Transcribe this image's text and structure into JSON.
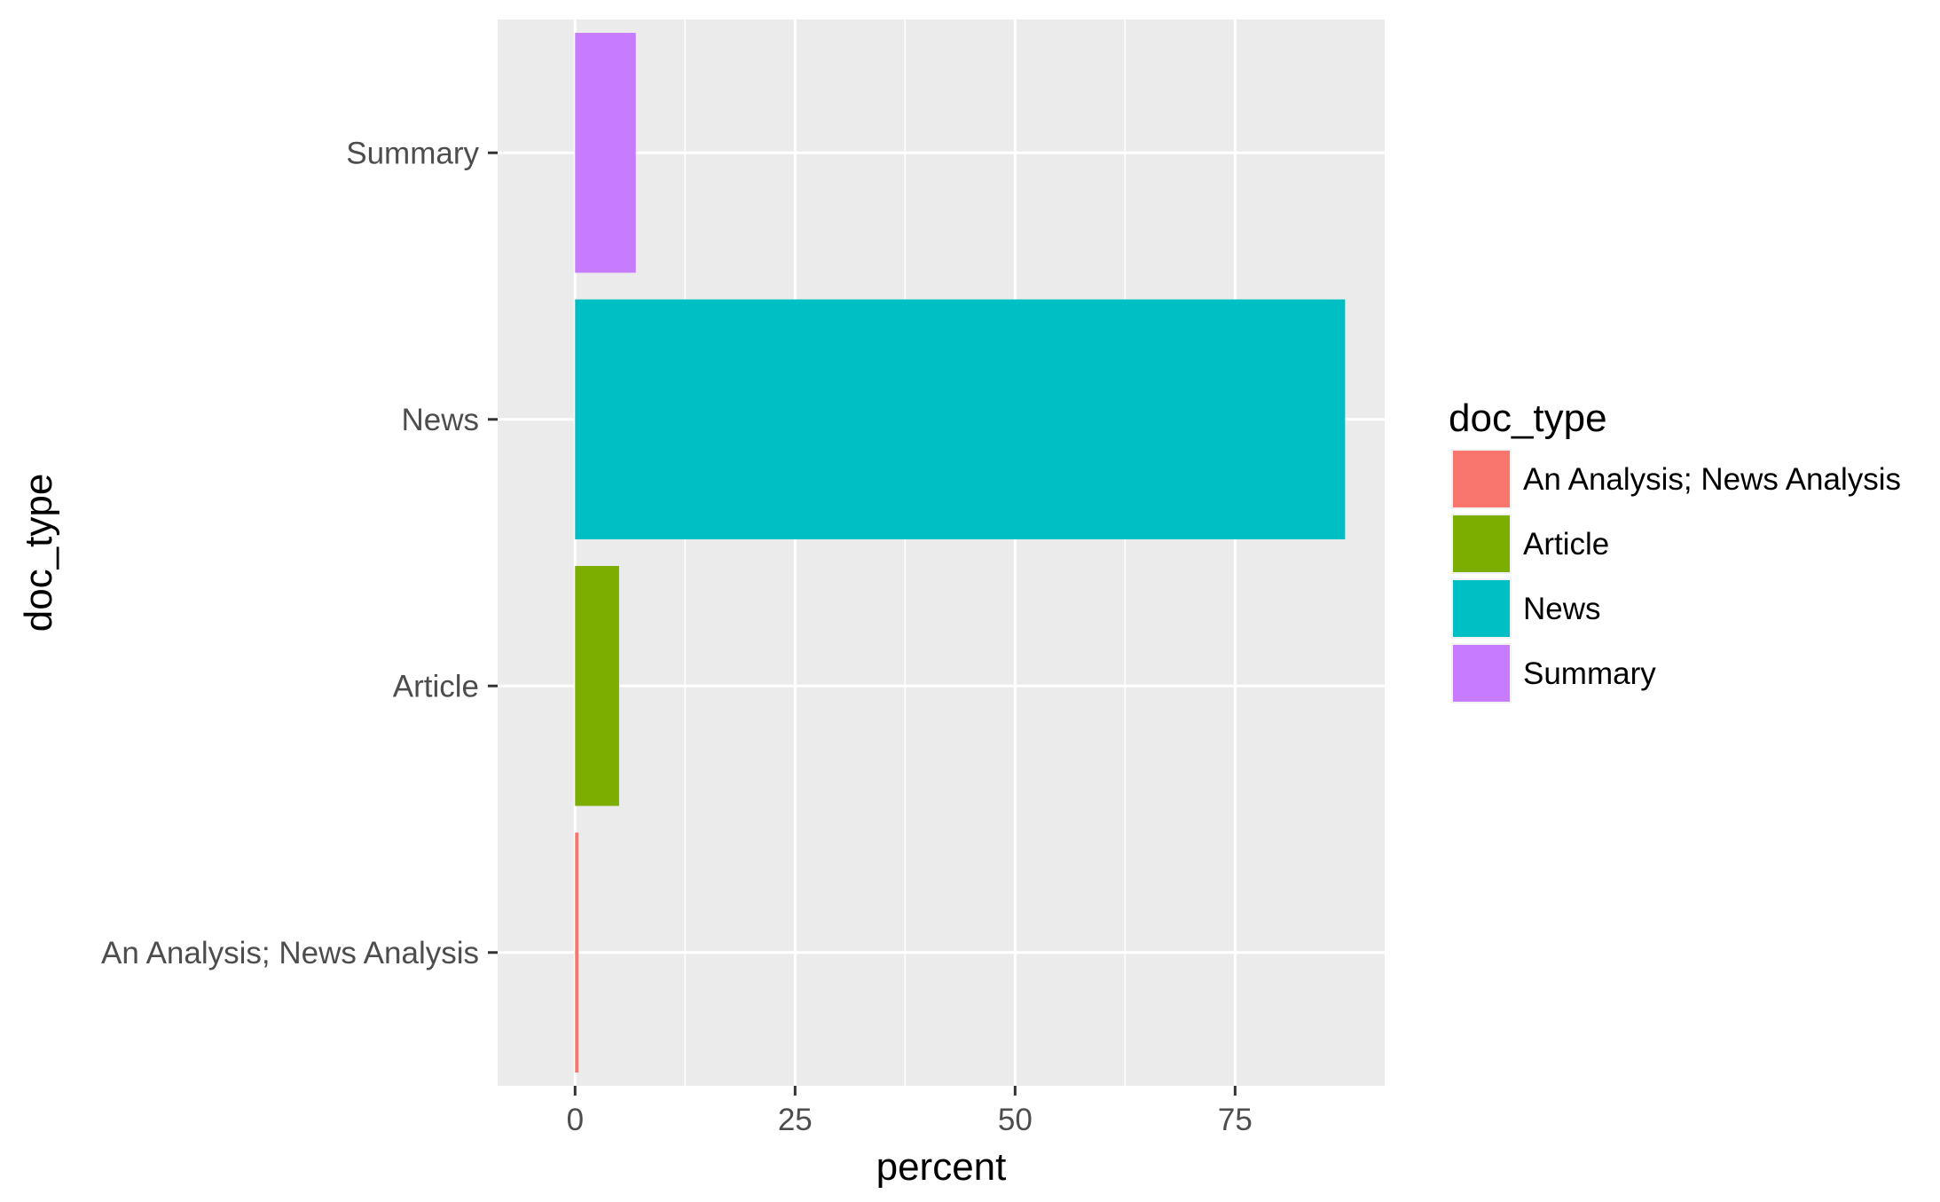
{
  "chart_data": {
    "type": "bar",
    "orientation": "horizontal",
    "categories": [
      "An Analysis; News Analysis",
      "Article",
      "News",
      "Summary"
    ],
    "values": [
      0.4,
      5.0,
      87.5,
      6.9
    ],
    "colors": [
      "#F8766D",
      "#7CAE00",
      "#00BFC4",
      "#C77CFF"
    ],
    "xlabel": "percent",
    "ylabel": "doc_type",
    "xlim": [
      -8.8,
      92.0
    ],
    "x_ticks": [
      0,
      25,
      50,
      75
    ],
    "grid": true,
    "legend": {
      "title": "doc_type",
      "placement": "right",
      "entries": [
        "An Analysis; News Analysis",
        "Article",
        "News",
        "Summary"
      ]
    }
  },
  "colors": {
    "panel_background": "#EBEBEB",
    "grid_line": "#FFFFFF",
    "axis_text": "#4D4D4D",
    "title_text": "#000000"
  }
}
